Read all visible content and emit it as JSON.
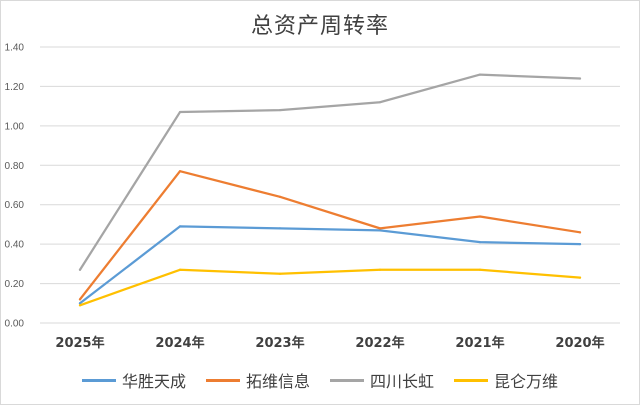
{
  "chart_data": {
    "type": "line",
    "title": "总资产周转率",
    "categories": [
      "2025年",
      "2024年",
      "2023年",
      "2022年",
      "2021年",
      "2020年"
    ],
    "ylim": [
      0,
      1.4
    ],
    "yticks": [
      "0.00",
      "0.20",
      "0.40",
      "0.60",
      "0.80",
      "1.00",
      "1.20",
      "1.40"
    ],
    "grid": true,
    "legend_position": "bottom",
    "series": [
      {
        "name": "华胜天成",
        "color": "#5b9bd5",
        "values": [
          0.1,
          0.49,
          0.48,
          0.47,
          0.41,
          0.4
        ]
      },
      {
        "name": "拓维信息",
        "color": "#ed7d31",
        "values": [
          0.12,
          0.77,
          0.64,
          0.48,
          0.54,
          0.46
        ]
      },
      {
        "name": "四川长虹",
        "color": "#a5a5a5",
        "values": [
          0.27,
          1.07,
          1.08,
          1.12,
          1.26,
          1.24
        ]
      },
      {
        "name": "昆仑万维",
        "color": "#ffc000",
        "values": [
          0.09,
          0.27,
          0.25,
          0.27,
          0.27,
          0.23
        ]
      }
    ]
  }
}
